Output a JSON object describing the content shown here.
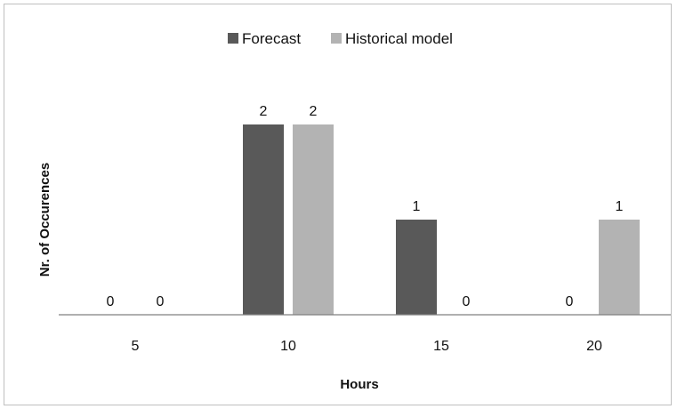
{
  "chart_data": {
    "type": "bar",
    "categories": [
      "5",
      "10",
      "15",
      "20"
    ],
    "series": [
      {
        "name": "Forecast",
        "values": [
          0,
          2,
          1,
          0
        ],
        "color": "#595959"
      },
      {
        "name": "Historical model",
        "values": [
          0,
          2,
          0,
          1
        ],
        "color": "#b3b3b3"
      }
    ],
    "xlabel": "Hours",
    "ylabel": "Nr. of Occurences",
    "ylim": [
      0,
      2
    ],
    "grid": false,
    "legend": "top-center",
    "data_labels": true
  }
}
